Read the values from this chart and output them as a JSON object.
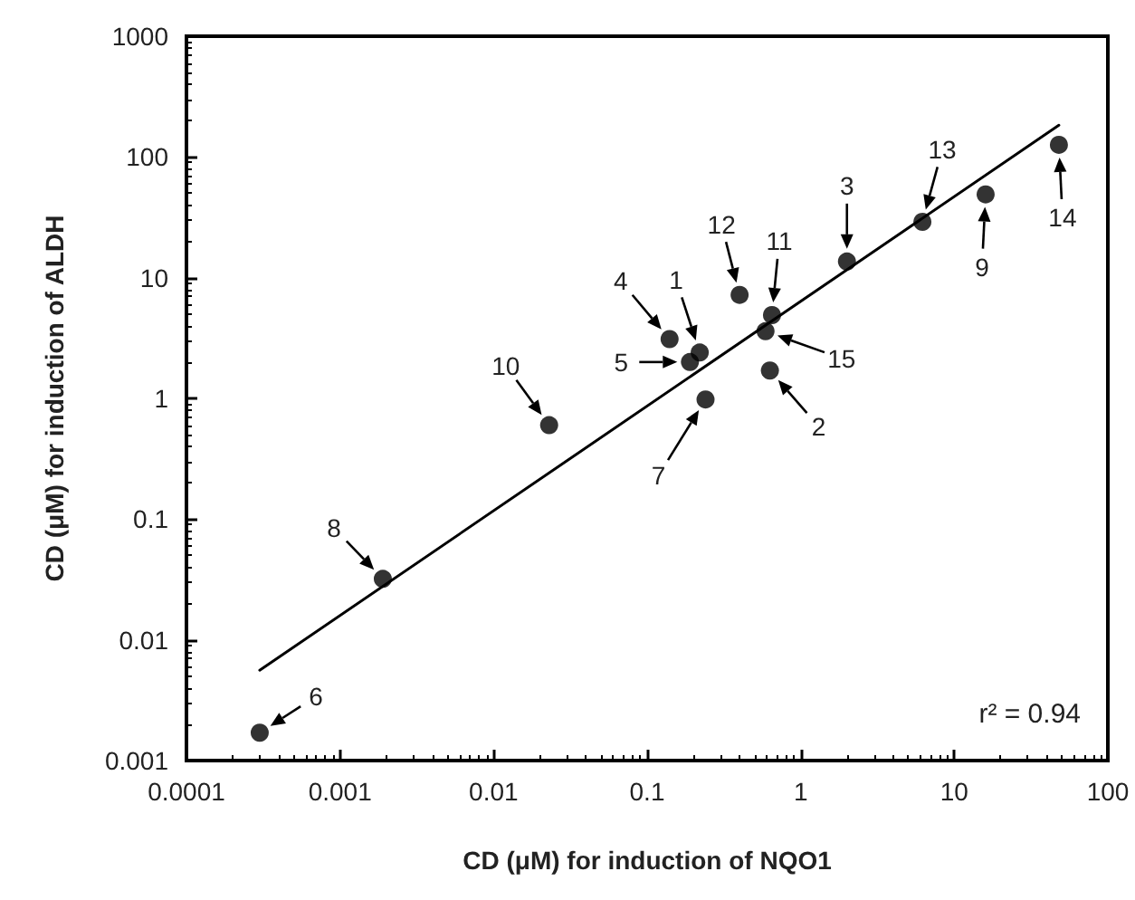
{
  "chart_data": {
    "type": "scatter",
    "xlabel": "CD (μM) for induction of NQO1",
    "ylabel": "CD (μM) for induction of ALDH",
    "x": [
      0.0003,
      0.0019,
      0.023,
      0.14,
      0.19,
      0.22,
      0.24,
      0.4,
      0.59,
      0.63,
      0.65,
      2.0,
      6.2,
      16,
      48
    ],
    "series": [
      {
        "color": "#000000",
        "marker": "circle",
        "values": [
          0.0017,
          0.032,
          0.6,
          3.1,
          2.0,
          2.4,
          0.98,
          7.2,
          3.6,
          1.7,
          4.9,
          13.6,
          29,
          49,
          126
        ]
      },
      {
        "type": "line",
        "color": "#000000",
        "marker": "none",
        "line_style": "solid",
        "x": [
          0.0003,
          48
        ],
        "values": [
          0.0056,
          183
        ]
      }
    ],
    "log": "xy",
    "xlim": [
      0.0001,
      100
    ],
    "ylim": [
      0.001,
      1000
    ],
    "xticks": [
      0.0001,
      0.001,
      0.01,
      0.1,
      1,
      10,
      100
    ],
    "yticks": [
      0.001,
      0.01,
      0.1,
      1,
      10,
      100,
      1000
    ],
    "grid": false,
    "annotations": [
      {
        "text": "1",
        "x": 0.22,
        "y": 2.4
      },
      {
        "text": "2",
        "x": 0.63,
        "y": 1.7
      },
      {
        "text": "3",
        "x": 2.0,
        "y": 13.6
      },
      {
        "text": "4",
        "x": 0.14,
        "y": 3.1
      },
      {
        "text": "5",
        "x": 0.19,
        "y": 2.0
      },
      {
        "text": "6",
        "x": 0.0003,
        "y": 0.0017
      },
      {
        "text": "7",
        "x": 0.24,
        "y": 0.98
      },
      {
        "text": "8",
        "x": 0.0019,
        "y": 0.032
      },
      {
        "text": "9",
        "x": 16,
        "y": 49
      },
      {
        "text": "10",
        "x": 0.023,
        "y": 0.6
      },
      {
        "text": "11",
        "x": 0.65,
        "y": 4.9
      },
      {
        "text": "12",
        "x": 0.4,
        "y": 7.2
      },
      {
        "text": "13",
        "x": 6.2,
        "y": 29
      },
      {
        "text": "14",
        "x": 48,
        "y": 126
      },
      {
        "text": "15",
        "x": 0.59,
        "y": 3.6
      },
      "r² = 0.94"
    ]
  }
}
